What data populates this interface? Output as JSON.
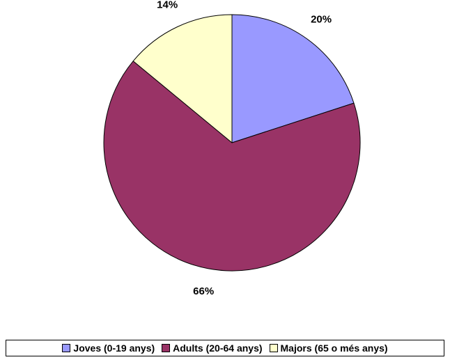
{
  "chart_data": {
    "type": "pie",
    "title": "",
    "categories": [
      "Joves (0-19 anys)",
      "Adults (20-64 anys)",
      "Majors (65 o més anys)"
    ],
    "values": [
      20,
      66,
      14
    ],
    "data_labels": [
      "20%",
      "66%",
      "14%"
    ],
    "colors": [
      "#9999ff",
      "#993366",
      "#ffffcc"
    ],
    "start_angle": "12 o'clock",
    "direction": "clockwise",
    "legend_position": "bottom"
  },
  "legend": {
    "items": [
      {
        "label": "Joves (0-19 anys)",
        "color": "#9999ff"
      },
      {
        "label": "Adults (20-64 anys)",
        "color": "#993366"
      },
      {
        "label": "Majors (65 o més anys)",
        "color": "#ffffcc"
      }
    ]
  }
}
